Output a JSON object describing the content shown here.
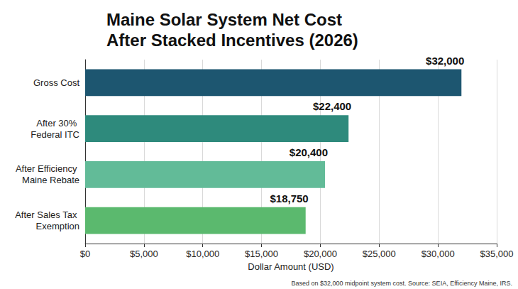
{
  "chart_data": {
    "type": "bar",
    "orientation": "horizontal",
    "title": "Maine Solar System Net Cost After Stacked Incentives (2026)",
    "x_label": "Dollar Amount (USD)",
    "footnote": "Based on $32,000 midpoint system cost. Source: SEIA, Efficiency Maine, IRS.",
    "categories": [
      "Gross Cost",
      "After 30% Federal ITC",
      "After Efficiency Maine Rebate",
      "After Sales Tax Exemption"
    ],
    "values": [
      32000,
      22400,
      20400,
      18750
    ],
    "value_labels": [
      "$32,000",
      "$22,400",
      "$20,400",
      "$18,750"
    ],
    "colors": [
      "#1d5670",
      "#2e8a7c",
      "#62bb98",
      "#5bb96e"
    ],
    "data_labels": true,
    "grid": true,
    "xlim": [
      0,
      35000
    ],
    "xticks": [
      {
        "value": 0,
        "label": "$0"
      },
      {
        "value": 5000,
        "label": "$5,000"
      },
      {
        "value": 10000,
        "label": "$10,000"
      },
      {
        "value": 15000,
        "label": "$15,000"
      },
      {
        "value": 20000,
        "label": "$20,000"
      },
      {
        "value": 25000,
        "label": "$25,000"
      },
      {
        "value": 30000,
        "label": "$30,000"
      },
      {
        "value": 35000,
        "label": "$35,000"
      }
    ]
  }
}
